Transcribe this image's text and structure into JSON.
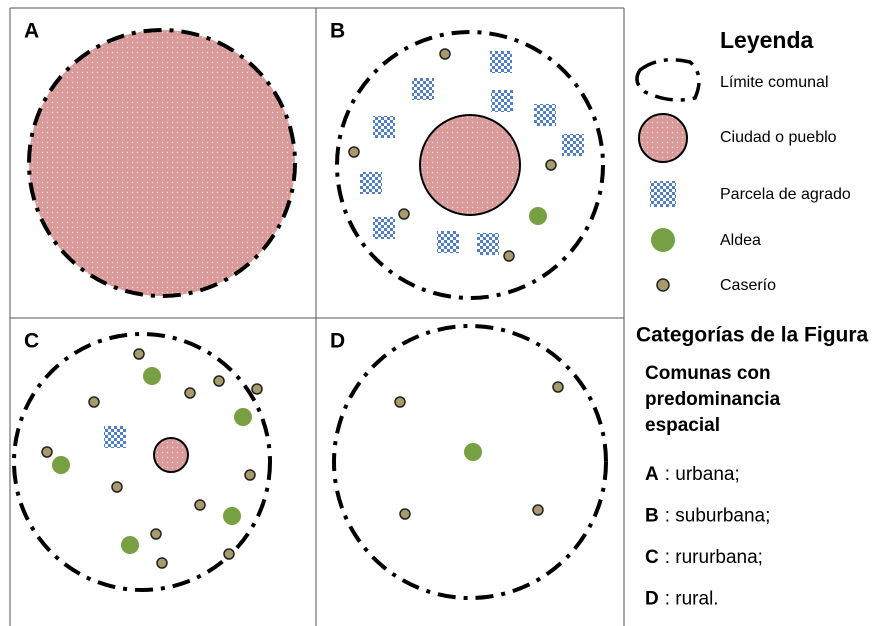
{
  "panels": [
    "A",
    "B",
    "C",
    "D"
  ],
  "legend": {
    "title": "Leyenda",
    "items": [
      "Límite comunal",
      "Ciudad o pueblo",
      "Parcela de agrado",
      "Aldea",
      "Caserío"
    ]
  },
  "categories": {
    "title": "Categorías de la Figura",
    "subtitle": [
      "Comunas con",
      "predominancia",
      "espacial"
    ],
    "items": [
      {
        "letter": "A",
        "text": ": urbana;"
      },
      {
        "letter": "B",
        "text": ": suburbana;"
      },
      {
        "letter": "C",
        "text": ": rururbana;"
      },
      {
        "letter": "D",
        "text": ": rural."
      }
    ]
  }
}
